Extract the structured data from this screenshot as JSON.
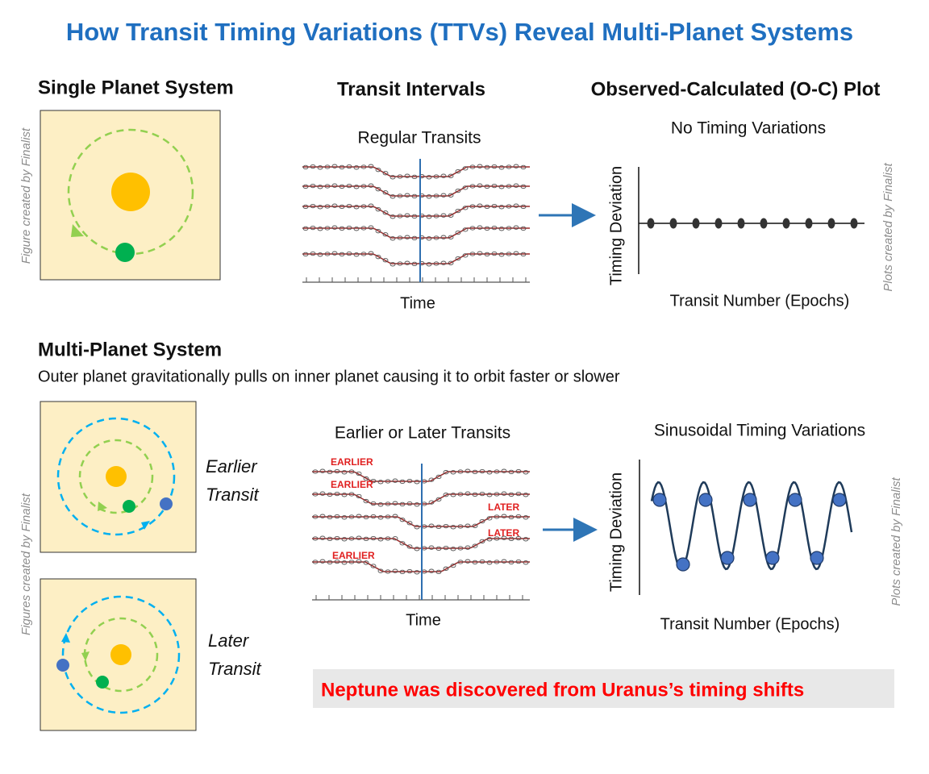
{
  "title": "How Transit Timing Variations (TTVs) Reveal Multi-Planet Systems",
  "single": {
    "heading": "Single Planet System",
    "credit": "Figure created by Finalist"
  },
  "intervals": {
    "heading": "Transit Intervals",
    "subtitle": "Regular Transits",
    "xlabel": "Time"
  },
  "oc_plot": {
    "heading": "Observed-Calculated (O-C) Plot",
    "subtitle": "No Timing Variations",
    "ylabel": "Timing Deviation",
    "xlabel": "Transit Number (Epochs)",
    "credit": "Plots created by Finalist"
  },
  "multi": {
    "heading": "Multi-Planet System",
    "description": "Outer planet gravitationally pulls on inner planet causing it to orbit faster or slower",
    "credit": "Figures created by Finalist",
    "cases": [
      {
        "label_lines": [
          "Earlier",
          "Transit"
        ]
      },
      {
        "label_lines": [
          "Later",
          "Transit"
        ]
      }
    ],
    "transits": {
      "subtitle": "Earlier or Later Transits",
      "xlabel": "Time",
      "curve_labels": [
        "EARLIER",
        "EARLIER",
        "LATER",
        "LATER",
        "EARLIER"
      ]
    },
    "oc_plot": {
      "subtitle": "Sinusoidal Timing Variations",
      "ylabel": "Timing Deviation",
      "xlabel": "Transit Number (Epochs)",
      "credit": "Plots created by Finalist"
    }
  },
  "note": "Neptune was discovered from Uranus’s timing shifts"
}
